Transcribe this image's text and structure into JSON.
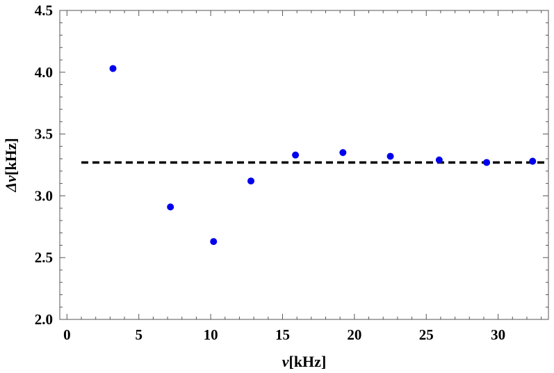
{
  "chart_data": {
    "type": "scatter",
    "xlabel_var": "ν",
    "xlabel_unit": "[kHz]",
    "ylabel_var": "Δν",
    "ylabel_unit": "[kHz]",
    "xlim": [
      -0.5,
      33.5
    ],
    "ylim": [
      2.0,
      4.5
    ],
    "xticks": [
      0,
      5,
      10,
      15,
      20,
      25,
      30
    ],
    "xtick_labels": [
      "0",
      "5",
      "10",
      "15",
      "20",
      "25",
      "30"
    ],
    "yticks": [
      2.0,
      2.5,
      3.0,
      3.5,
      4.0,
      4.5
    ],
    "ytick_labels": [
      "2.0",
      "2.5",
      "3.0",
      "3.5",
      "4.0",
      "4.5"
    ],
    "series": [
      {
        "marker_color": "#0000ee",
        "points": [
          {
            "x": 3.2,
            "y": 4.03
          },
          {
            "x": 7.2,
            "y": 2.91
          },
          {
            "x": 10.2,
            "y": 2.63
          },
          {
            "x": 12.8,
            "y": 3.12
          },
          {
            "x": 15.9,
            "y": 3.33
          },
          {
            "x": 19.2,
            "y": 3.35
          },
          {
            "x": 22.5,
            "y": 3.32
          },
          {
            "x": 25.9,
            "y": 3.29
          },
          {
            "x": 29.2,
            "y": 3.27
          },
          {
            "x": 32.4,
            "y": 3.28
          }
        ]
      }
    ],
    "reference_line": {
      "y": 3.27,
      "x_start": 1.0,
      "x_end": 33.5,
      "style": "dashed",
      "color": "#000000"
    },
    "grid": false
  }
}
